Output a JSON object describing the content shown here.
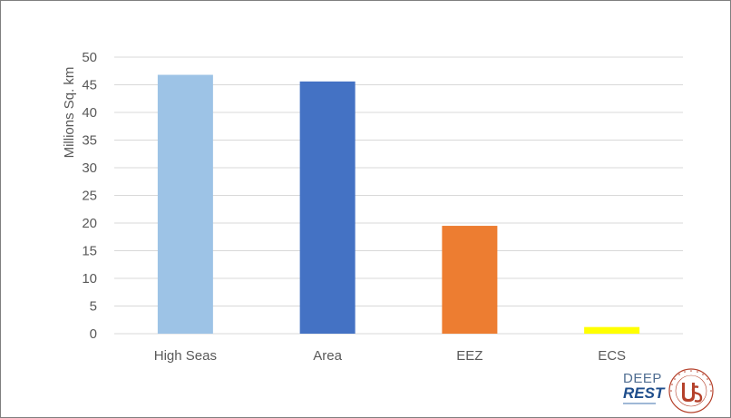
{
  "chart_data": {
    "type": "bar",
    "categories": [
      "High Seas",
      "Area",
      "EEZ",
      "ECS"
    ],
    "values": [
      46.8,
      45.6,
      19.5,
      1.2
    ],
    "colors": [
      "#9dc3e6",
      "#4472c4",
      "#ed7d31",
      "#ffff00"
    ],
    "title": "",
    "xlabel": "",
    "ylabel": "Millions Sq. km",
    "ylim": [
      0,
      50
    ],
    "yticks": [
      0,
      5,
      10,
      15,
      20,
      25,
      30,
      35,
      40,
      45,
      50
    ],
    "grid": true,
    "gridColor": "#d9d9d9"
  },
  "logos": {
    "deeprest": {
      "line1": "DEEP",
      "line2": "REST"
    },
    "university": {
      "icon": "university-seal-icon",
      "color": "#b5412b",
      "seal_text": "UNIVERSIDAD DE SEVILLA"
    }
  }
}
